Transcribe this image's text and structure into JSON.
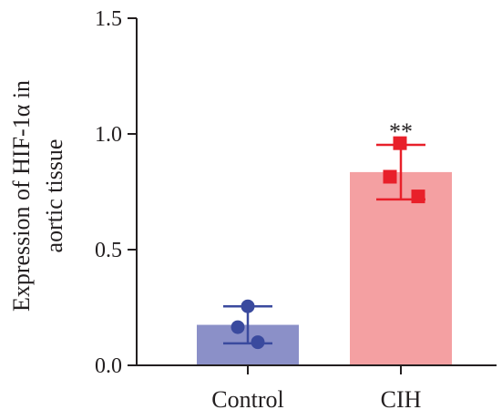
{
  "chart_data": {
    "type": "bar",
    "categories": [
      "Control",
      "CIH"
    ],
    "values": [
      0.175,
      0.835
    ],
    "error": [
      0.08,
      0.118
    ],
    "points": [
      [
        0.255,
        0.165,
        0.1
      ],
      [
        0.96,
        0.815,
        0.73
      ]
    ],
    "bar_colors": [
      "#8b90c8",
      "#f4a0a2"
    ],
    "point_colors": [
      "#3a4a9e",
      "#e8202a"
    ],
    "point_shapes": [
      "circle",
      "square"
    ],
    "annotations": [
      "",
      "**"
    ],
    "ylabel_lines": [
      "Expression of HIF-1α in",
      "aortic tissue"
    ],
    "ylim": [
      0,
      1.5
    ],
    "yticks": [
      0.0,
      0.5,
      1.0,
      1.5
    ],
    "ytick_labels": [
      "0.0",
      "0.5",
      "1.0",
      "1.5"
    ],
    "grid": false
  }
}
